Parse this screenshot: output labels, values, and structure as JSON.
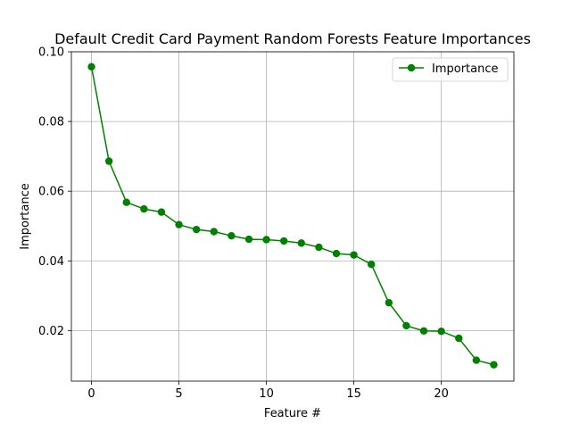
{
  "chart_data": {
    "type": "line",
    "title": "Default Credit Card Payment Random Forests Feature Importances",
    "xlabel": "Feature #",
    "ylabel": "Importance",
    "xlim": [
      -1.15,
      24.15
    ],
    "ylim": [
      0.0055,
      0.1
    ],
    "x_ticks": [
      0,
      5,
      10,
      15,
      20
    ],
    "y_ticks": [
      0.02,
      0.04,
      0.06,
      0.08,
      0.1
    ],
    "y_tick_labels": [
      "0.02",
      "0.04",
      "0.06",
      "0.08",
      "0.10"
    ],
    "grid": true,
    "legend_position": "top-right",
    "series": [
      {
        "name": "Importance",
        "color": "#008000",
        "marker": "circle",
        "x": [
          0,
          1,
          2,
          3,
          4,
          5,
          6,
          7,
          8,
          9,
          10,
          11,
          12,
          13,
          14,
          15,
          16,
          17,
          18,
          19,
          20,
          21,
          22,
          23
        ],
        "values": [
          0.0957,
          0.0686,
          0.0568,
          0.0549,
          0.054,
          0.0504,
          0.049,
          0.0484,
          0.0472,
          0.0462,
          0.0461,
          0.0457,
          0.0451,
          0.0439,
          0.0421,
          0.0417,
          0.039,
          0.028,
          0.0214,
          0.0199,
          0.0198,
          0.0178,
          0.0115,
          0.0102
        ]
      }
    ]
  }
}
